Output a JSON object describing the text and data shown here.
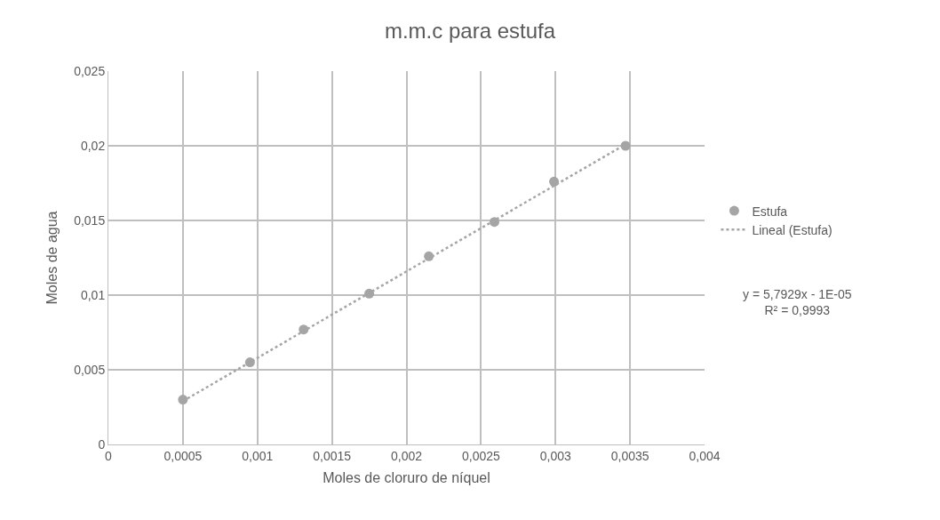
{
  "chart_data": {
    "type": "scatter",
    "title": "m.m.c para estufa",
    "xlabel": "Moles de cloruro de níquel",
    "ylabel": "Moles de agua",
    "series": [
      {
        "name": "Estufa",
        "type": "scatter",
        "color": "#a5a5a5",
        "marker": "circle",
        "x": [
          0.0005,
          0.00095,
          0.00131,
          0.00175,
          0.00215,
          0.00259,
          0.00299,
          0.00347
        ],
        "values": [
          0.003,
          0.0055,
          0.0077,
          0.0101,
          0.0126,
          0.0149,
          0.0176,
          0.02
        ]
      },
      {
        "name": "Lineal (Estufa)",
        "type": "line",
        "color": "#a5a5a5",
        "line_style": "dotted",
        "marker": "none",
        "x": [
          0.0005,
          0.00347
        ],
        "values": [
          0.0029,
          0.0201
        ]
      }
    ],
    "annotations": [
      "y = 5,7929x - 1E-05\nR² = 0,9993"
    ],
    "xlim": [
      0,
      0.004
    ],
    "xticks": [
      0,
      {
        "value": 0.0005,
        "label": "0,0005"
      },
      {
        "value": 0.001,
        "label": "0,001"
      },
      {
        "value": 0.0015,
        "label": "0,0015"
      },
      {
        "value": 0.002,
        "label": "0,002"
      },
      {
        "value": 0.0025,
        "label": "0,0025"
      },
      {
        "value": 0.003,
        "label": "0,003"
      },
      {
        "value": 0.0035,
        "label": "0,0035"
      },
      {
        "value": 0.004,
        "label": "0,004"
      }
    ],
    "ylim": [
      0,
      0.025
    ],
    "yticks": [
      0,
      {
        "value": 0.005,
        "label": "0,005"
      },
      {
        "value": 0.01,
        "label": "0,01"
      },
      {
        "value": 0.015,
        "label": "0,015"
      },
      {
        "value": 0.02,
        "label": "0,02"
      },
      {
        "value": 0.025,
        "label": "0,025"
      }
    ],
    "grid": true,
    "legend": "right"
  }
}
